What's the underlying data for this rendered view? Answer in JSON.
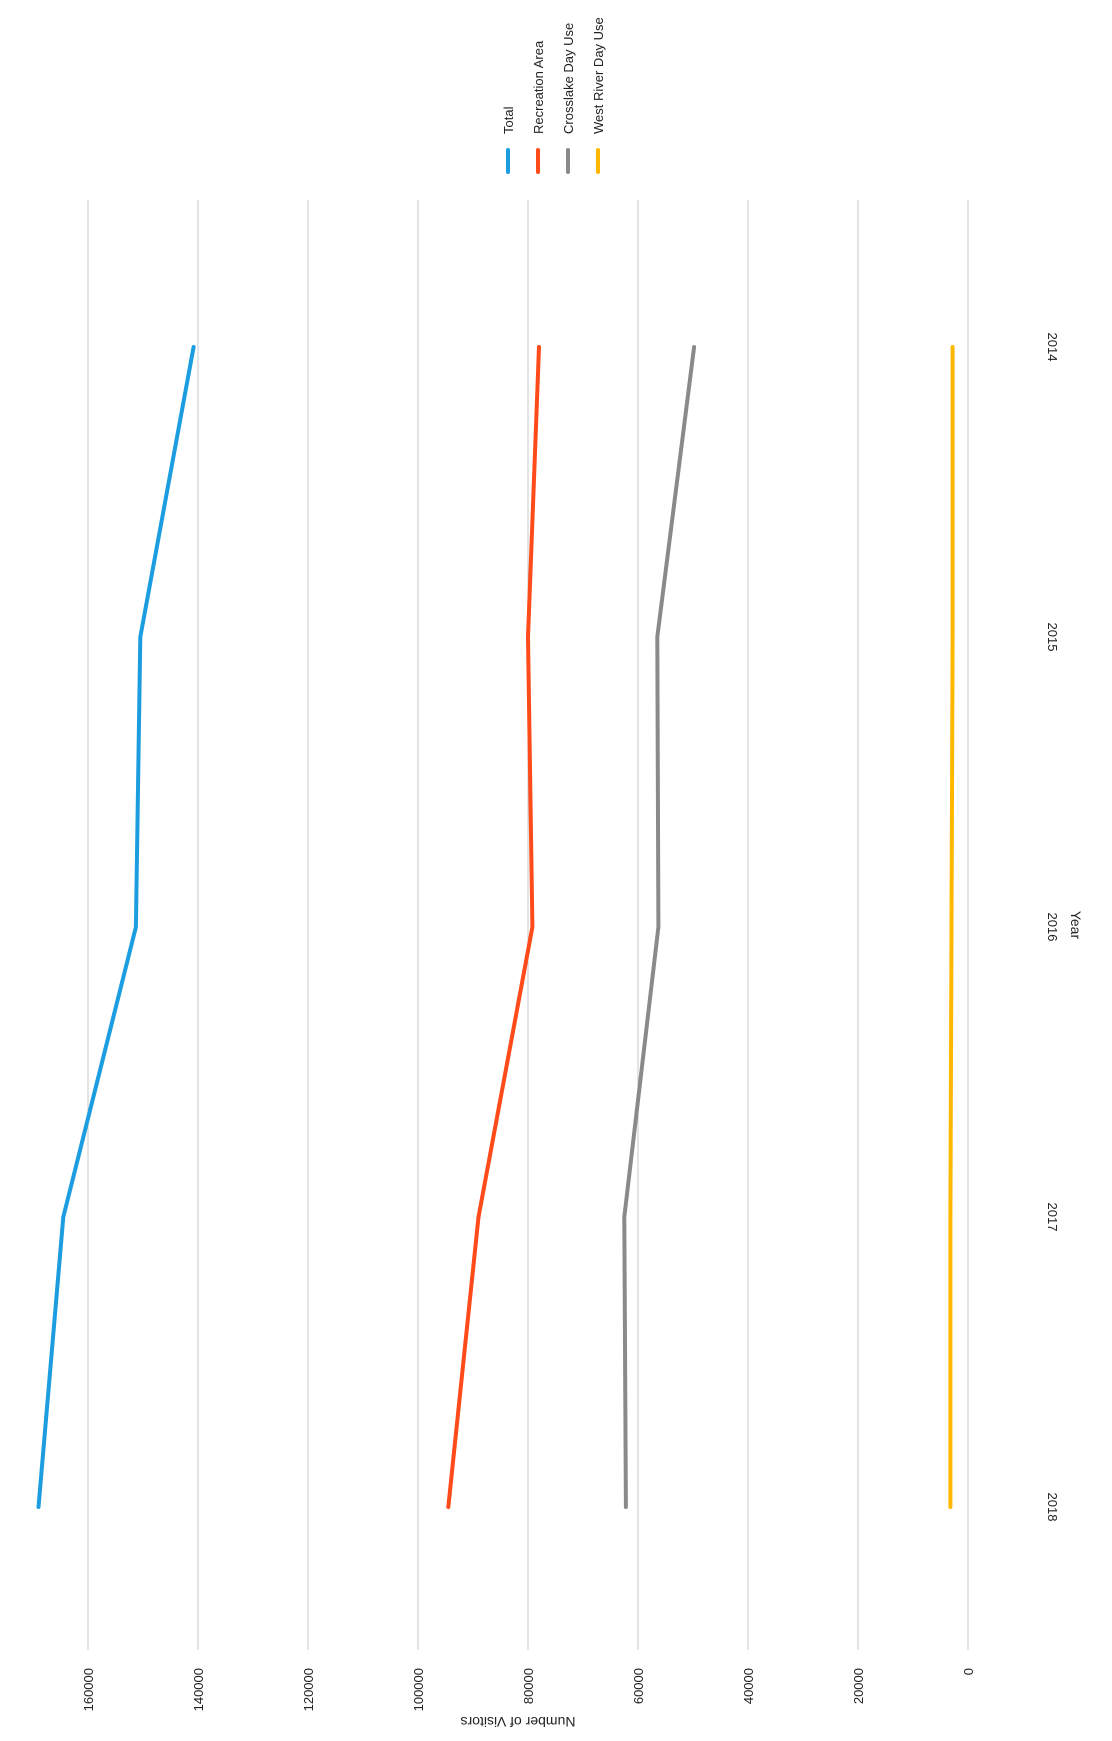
{
  "chart_data": {
    "type": "line",
    "title": "",
    "xlabel": "Year",
    "ylabel": "Number of Visitors",
    "x": [
      "2014",
      "2015",
      "2016",
      "2017",
      "2018"
    ],
    "ylim": [
      0,
      170000
    ],
    "yticks": [
      0,
      20000,
      40000,
      60000,
      80000,
      100000,
      120000,
      140000,
      160000
    ],
    "grid": true,
    "orientation": "rotated 90 degrees clockwise",
    "legend_position": "top-right",
    "series": [
      {
        "name": "Total",
        "color": "#1b9de0",
        "values": [
          140800,
          150500,
          151300,
          164500,
          169000
        ]
      },
      {
        "name": "Recreation Area",
        "color": "#ff4a1a",
        "values": [
          78000,
          80000,
          79200,
          89000,
          94500
        ]
      },
      {
        "name": "Crosslake Day Use",
        "color": "#8a8a8a",
        "values": [
          49800,
          56500,
          56300,
          62500,
          62200
        ]
      },
      {
        "name": "West River Day Use",
        "color": "#ffb800",
        "values": [
          2800,
          2800,
          3000,
          3200,
          3200
        ]
      }
    ]
  }
}
